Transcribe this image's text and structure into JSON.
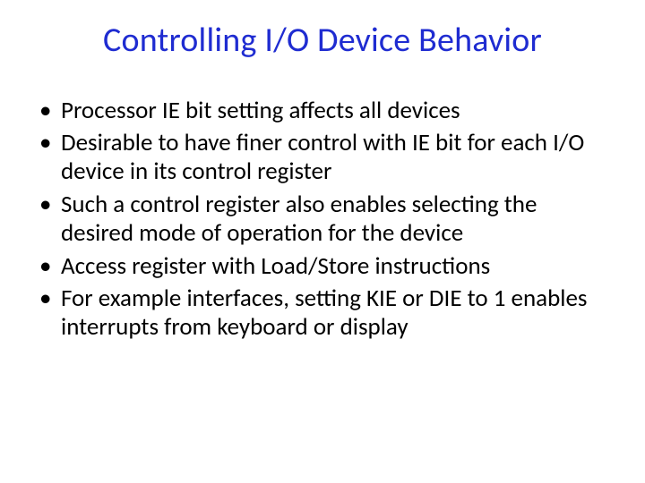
{
  "slide": {
    "title": "Controlling I/O Device Behavior",
    "title_color": "#1f2cd1",
    "title_fontsize": 38,
    "body_color": "#000000",
    "body_fontsize": 27,
    "background_color": "#ffffff",
    "bullets": [
      "Processor IE bit setting affects all devices",
      "Desirable to have finer control with IE bit for each I/O device in its control register",
      "Such a control register also enables selecting the desired mode of operation for the device",
      "Access register with Load/Store instructions",
      "For example interfaces, setting KIE or DIE to 1 enables interrupts from keyboard or display"
    ]
  }
}
